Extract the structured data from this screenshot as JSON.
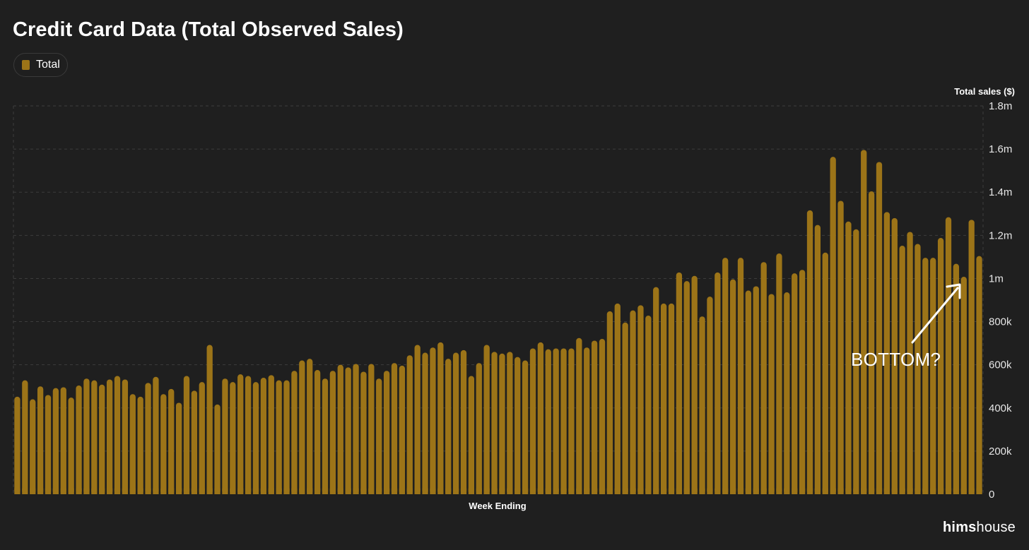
{
  "title": "Credit Card Data (Total Observed Sales)",
  "legend": {
    "label": "Total",
    "color": "#9c7418"
  },
  "annotation": {
    "text": "BOTTOM?"
  },
  "watermark": {
    "bold": "hims",
    "light": "house"
  },
  "chart_data": {
    "type": "bar",
    "title": "Credit Card Data (Total Observed Sales)",
    "xlabel": "Week Ending",
    "ylabel": "Total sales ($)",
    "ylim": [
      0,
      1800000
    ],
    "y_ticks": [
      {
        "value": 0,
        "label": "0"
      },
      {
        "value": 200000,
        "label": "200k"
      },
      {
        "value": 400000,
        "label": "400k"
      },
      {
        "value": 600000,
        "label": "600k"
      },
      {
        "value": 800000,
        "label": "800k"
      },
      {
        "value": 1000000,
        "label": "1m"
      },
      {
        "value": 1200000,
        "label": "1.2m"
      },
      {
        "value": 1400000,
        "label": "1.4m"
      },
      {
        "value": 1600000,
        "label": "1.6m"
      },
      {
        "value": 1800000,
        "label": "1.8m"
      }
    ],
    "y_axis_position": "right",
    "grid": true,
    "legend_position": "top-left",
    "bar_color": "#9c7418",
    "series": [
      {
        "name": "Total",
        "values": [
          452000,
          528000,
          440000,
          500000,
          460000,
          492000,
          496000,
          448000,
          504000,
          536000,
          528000,
          508000,
          532000,
          548000,
          532000,
          464000,
          452000,
          516000,
          544000,
          464000,
          488000,
          424000,
          548000,
          480000,
          520000,
          692000,
          416000,
          536000,
          520000,
          556000,
          548000,
          520000,
          540000,
          552000,
          528000,
          528000,
          572000,
          620000,
          628000,
          576000,
          536000,
          572000,
          600000,
          588000,
          604000,
          568000,
          604000,
          536000,
          572000,
          608000,
          596000,
          644000,
          692000,
          656000,
          680000,
          704000,
          628000,
          656000,
          668000,
          548000,
          608000,
          692000,
          660000,
          652000,
          660000,
          636000,
          620000,
          676000,
          704000,
          672000,
          676000,
          676000,
          676000,
          724000,
          680000,
          712000,
          720000,
          848000,
          884000,
          796000,
          852000,
          876000,
          828000,
          960000,
          884000,
          884000,
          1028000,
          988000,
          1012000,
          824000,
          916000,
          1028000,
          1096000,
          996000,
          1096000,
          944000,
          964000,
          1076000,
          928000,
          1116000,
          936000,
          1024000,
          1040000,
          1316000,
          1248000,
          1120000,
          1564000,
          1360000,
          1264000,
          1228000,
          1596000,
          1404000,
          1540000,
          1308000,
          1280000,
          1152000,
          1216000,
          1160000,
          1096000,
          1096000,
          1188000,
          1284000,
          1068000,
          1008000,
          1272000,
          1104000
        ]
      }
    ]
  }
}
